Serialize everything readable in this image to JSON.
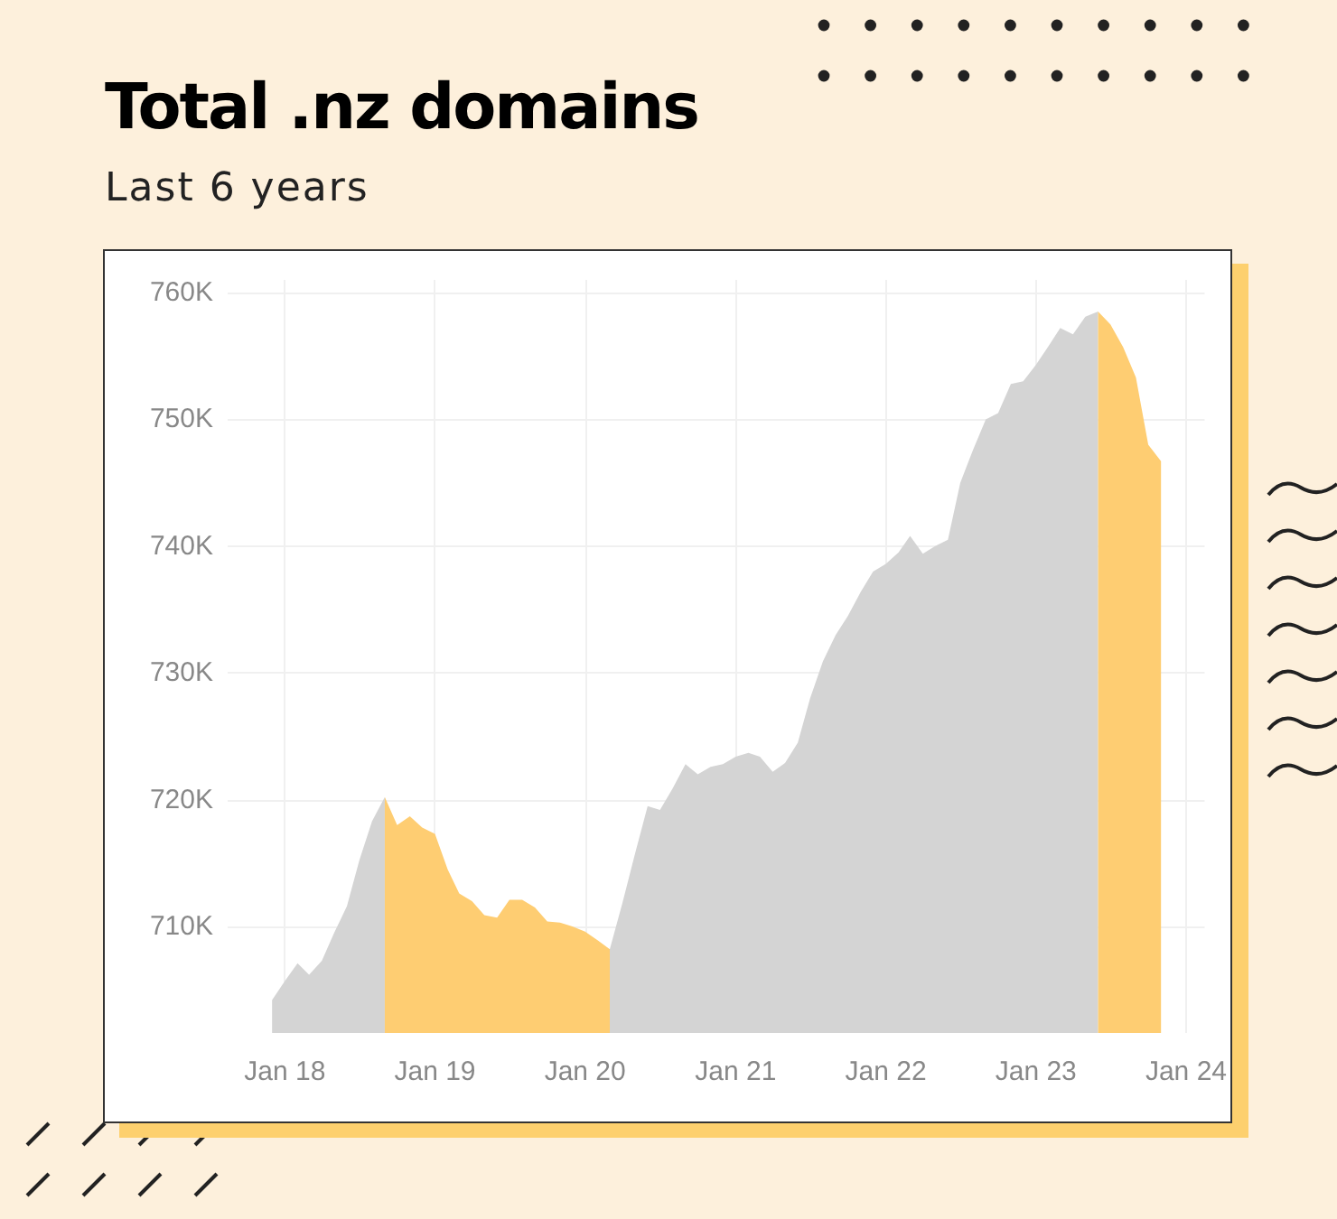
{
  "chart_data": {
    "type": "area",
    "title": "Total .nz domains",
    "subtitle": "Last 6 years",
    "x": [
      "2017-12",
      "2018-01",
      "2018-02",
      "2018-03",
      "2018-04",
      "2018-05",
      "2018-06",
      "2018-07",
      "2018-08",
      "2018-09",
      "2018-10",
      "2018-11",
      "2018-12",
      "2019-01",
      "2019-02",
      "2019-03",
      "2019-04",
      "2019-05",
      "2019-06",
      "2019-07",
      "2019-08",
      "2019-09",
      "2019-10",
      "2019-11",
      "2019-12",
      "2020-01",
      "2020-02",
      "2020-03",
      "2020-04",
      "2020-05",
      "2020-06",
      "2020-07",
      "2020-08",
      "2020-09",
      "2020-10",
      "2020-11",
      "2020-12",
      "2021-01",
      "2021-02",
      "2021-03",
      "2021-04",
      "2021-05",
      "2021-06",
      "2021-07",
      "2021-08",
      "2021-09",
      "2021-10",
      "2021-11",
      "2021-12",
      "2022-01",
      "2022-02",
      "2022-03",
      "2022-04",
      "2022-05",
      "2022-06",
      "2022-07",
      "2022-08",
      "2022-09",
      "2022-10",
      "2022-11",
      "2022-12",
      "2023-01",
      "2023-02",
      "2023-03",
      "2023-04",
      "2023-05",
      "2023-06",
      "2023-07",
      "2023-08",
      "2023-09",
      "2023-10",
      "2023-11"
    ],
    "series": [
      {
        "color": "#d4d4d4",
        "values": [
          704200,
          705700,
          707100,
          706200,
          707300,
          709500,
          711600,
          715200,
          718300,
          720200,
          null,
          null,
          null,
          null,
          null,
          null,
          null,
          null,
          null,
          null,
          null,
          null,
          null,
          null,
          null,
          null,
          null,
          708200,
          711900,
          715700,
          719500,
          719200,
          720900,
          722800,
          722000,
          722600,
          722800,
          723400,
          723700,
          723400,
          722200,
          722900,
          724500,
          728000,
          730900,
          733000,
          734500,
          736400,
          738000,
          738600,
          739500,
          740800,
          739400,
          740000,
          740500,
          745000,
          747600,
          750000,
          750500,
          752800,
          753000,
          754300,
          755800,
          757200,
          756700,
          758100,
          758500,
          null,
          null,
          null,
          null,
          null
        ]
      },
      {
        "color": "#fecd72",
        "values": [
          null,
          null,
          null,
          null,
          null,
          null,
          null,
          null,
          null,
          720200,
          718000,
          718700,
          717800,
          717300,
          714500,
          712600,
          712000,
          710900,
          710700,
          712100,
          712100,
          711500,
          710400,
          710300,
          710000,
          709600,
          708900,
          708200,
          null,
          null,
          null,
          null,
          null,
          null,
          null,
          null,
          null,
          null,
          null,
          null,
          null,
          null,
          null,
          null,
          null,
          null,
          null,
          null,
          null,
          null,
          null,
          null,
          null,
          null,
          null,
          null,
          null,
          null,
          null,
          null,
          null,
          null,
          null,
          null,
          null,
          null,
          758500,
          757500,
          755700,
          753300,
          748000,
          746700
        ]
      }
    ],
    "xlim": [
      "2017-08-15",
      "2024-02-15"
    ],
    "xticks": [
      {
        "value": "2018-01-01",
        "label": "Jan 18"
      },
      {
        "value": "2019-01-01",
        "label": "Jan 19"
      },
      {
        "value": "2020-01-01",
        "label": "Jan 20"
      },
      {
        "value": "2021-01-01",
        "label": "Jan 21"
      },
      {
        "value": "2022-01-01",
        "label": "Jan 22"
      },
      {
        "value": "2023-01-01",
        "label": "Jan 23"
      },
      {
        "value": "2024-01-01",
        "label": "Jan 24"
      }
    ],
    "ylim": [
      701600,
      761000
    ],
    "yticks": [
      {
        "value": 710000,
        "label": "710K"
      },
      {
        "value": 720000,
        "label": "720K"
      },
      {
        "value": 730000,
        "label": "730K"
      },
      {
        "value": 740000,
        "label": "740K"
      },
      {
        "value": 750000,
        "label": "750K"
      },
      {
        "value": 760000,
        "label": "760K"
      }
    ],
    "grid": true
  }
}
